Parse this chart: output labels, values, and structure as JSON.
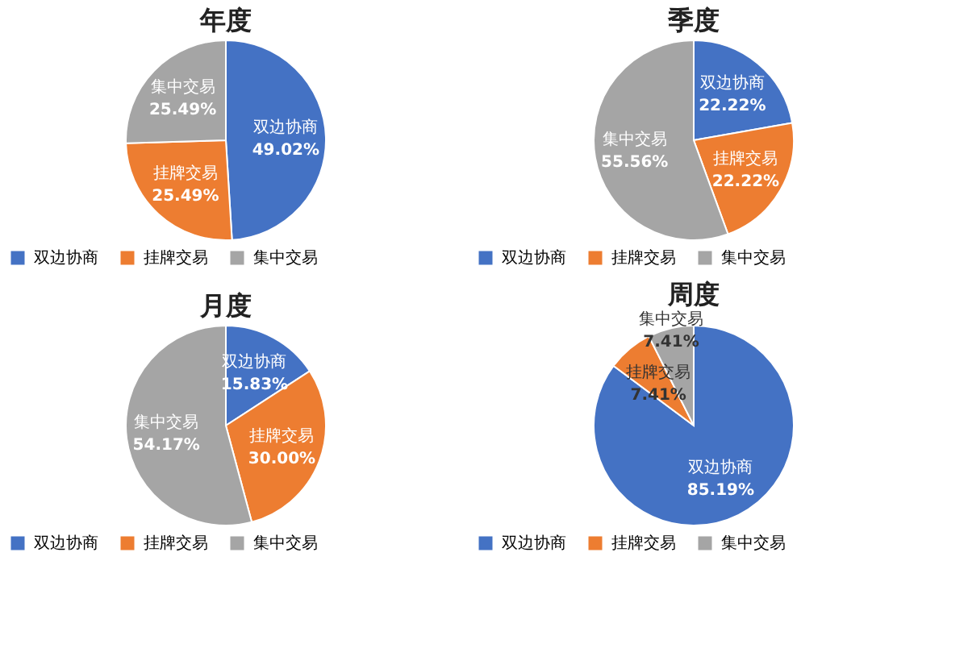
{
  "chart_data": [
    {
      "type": "pie",
      "title": "年度",
      "categories": [
        "双边协商",
        "挂牌交易",
        "集中交易"
      ],
      "values": [
        49.02,
        25.49,
        25.49
      ],
      "colors": [
        "#4472c4",
        "#ed7d31",
        "#a5a5a5"
      ],
      "value_labels": [
        "49.02%",
        "25.49%",
        "25.49%"
      ],
      "legend": "bottom"
    },
    {
      "type": "pie",
      "title": "季度",
      "categories": [
        "双边协商",
        "挂牌交易",
        "集中交易"
      ],
      "values": [
        22.22,
        22.22,
        55.56
      ],
      "colors": [
        "#4472c4",
        "#ed7d31",
        "#a5a5a5"
      ],
      "value_labels": [
        "22.22%",
        "22.22%",
        "55.56%"
      ],
      "legend": "bottom"
    },
    {
      "type": "pie",
      "title": "月度",
      "categories": [
        "双边协商",
        "挂牌交易",
        "集中交易"
      ],
      "values": [
        15.83,
        30.0,
        54.17
      ],
      "colors": [
        "#4472c4",
        "#ed7d31",
        "#a5a5a5"
      ],
      "value_labels": [
        "15.83%",
        "30.00%",
        "54.17%"
      ],
      "legend": "bottom"
    },
    {
      "type": "pie",
      "title": "周度",
      "categories": [
        "双边协商",
        "挂牌交易",
        "集中交易"
      ],
      "values": [
        85.19,
        7.41,
        7.41
      ],
      "colors": [
        "#4472c4",
        "#ed7d31",
        "#a5a5a5"
      ],
      "value_labels": [
        "85.19%",
        "7.41%",
        "7.41%"
      ],
      "legend": "bottom"
    }
  ]
}
